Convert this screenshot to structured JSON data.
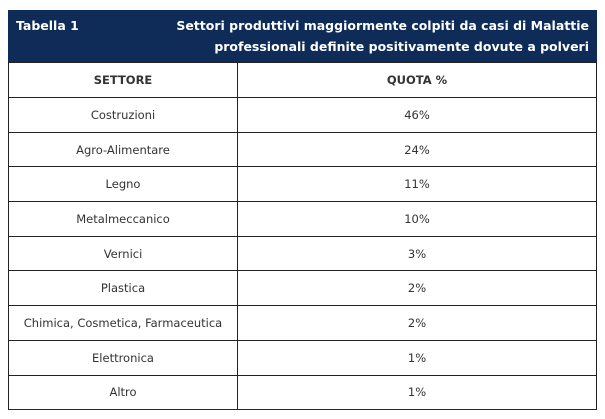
{
  "table": {
    "label": "Tabella 1",
    "caption_line1": "Settori produttivi maggiormente colpiti da casi di Malattie",
    "caption_line2": "professionali definite positivamente dovute a polveri",
    "headers": [
      "SETTORE",
      "QUOTA %"
    ],
    "rows": [
      [
        "Costruzioni",
        "46%"
      ],
      [
        "Agro-Alimentare",
        "24%"
      ],
      [
        "Legno",
        "11%"
      ],
      [
        "Metalmeccanico",
        "10%"
      ],
      [
        "Vernici",
        "3%"
      ],
      [
        "Plastica",
        "2%"
      ],
      [
        "Chimica, Cosmetica, Farmaceutica",
        "2%"
      ],
      [
        "Elettronica",
        "1%"
      ],
      [
        "Altro",
        "1%"
      ]
    ],
    "colors": {
      "header_bg": "#0f2b58"
    }
  }
}
